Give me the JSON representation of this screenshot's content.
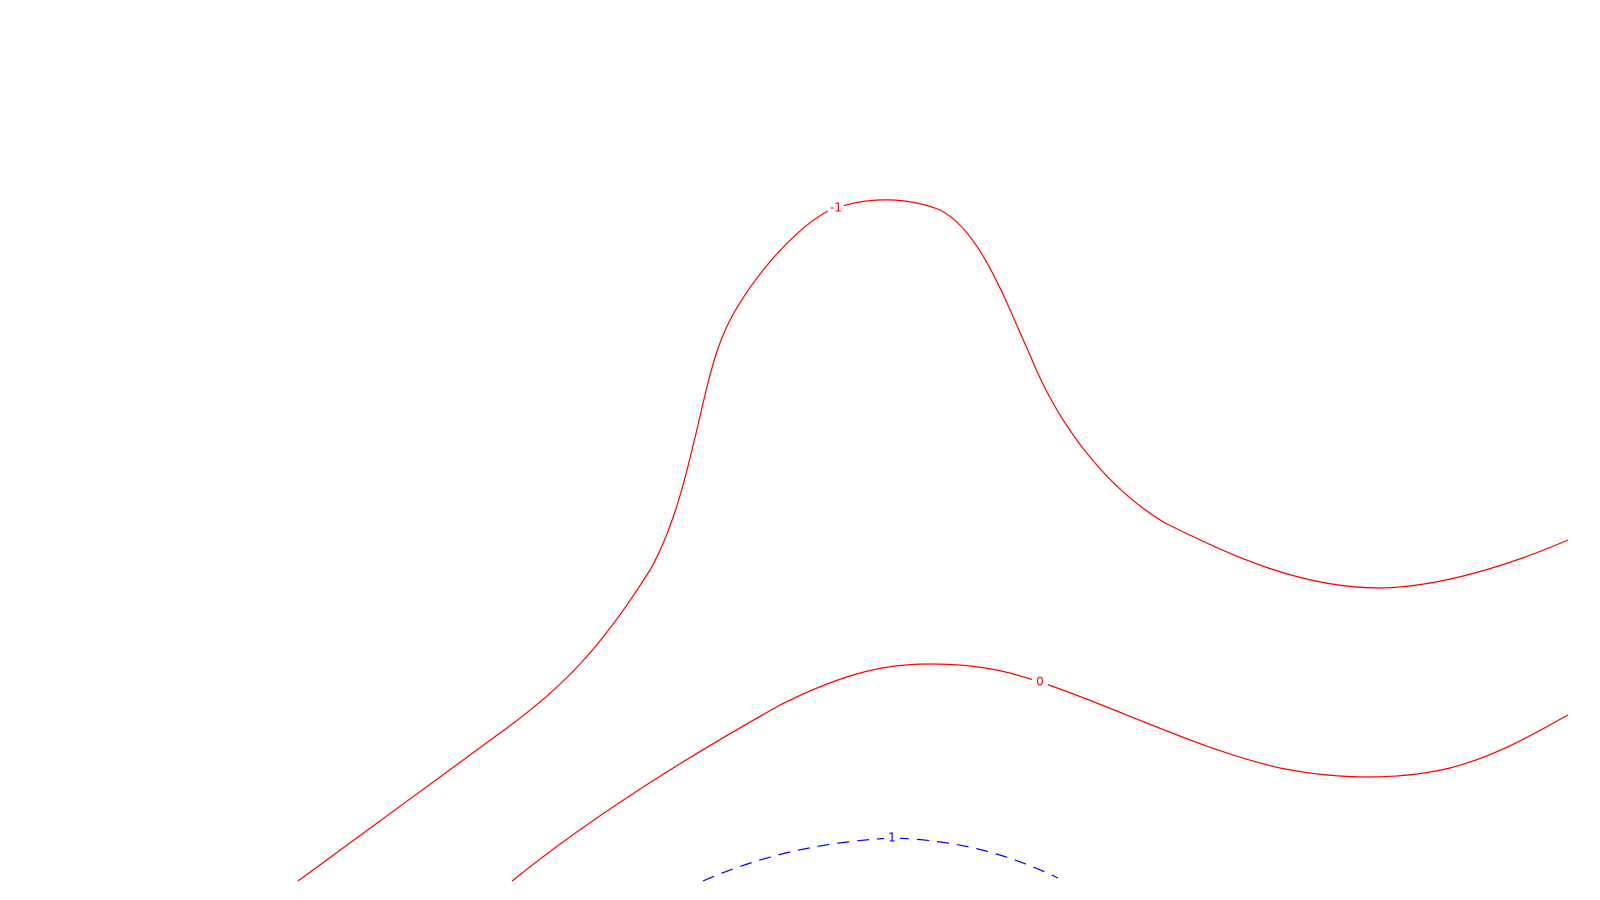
{
  "chart_data": {
    "type": "contour",
    "title": "",
    "xlabel": "",
    "ylabel": "",
    "grid": false,
    "legend": "none",
    "levels": [
      {
        "level": -1,
        "label": "-1",
        "color": "#ff0000",
        "linestyle": "solid"
      },
      {
        "level": 0,
        "label": "0",
        "color": "#ff0000",
        "linestyle": "solid"
      },
      {
        "level": 1,
        "label": "1",
        "color": "#0000ff",
        "linestyle": "dashed"
      }
    ]
  }
}
